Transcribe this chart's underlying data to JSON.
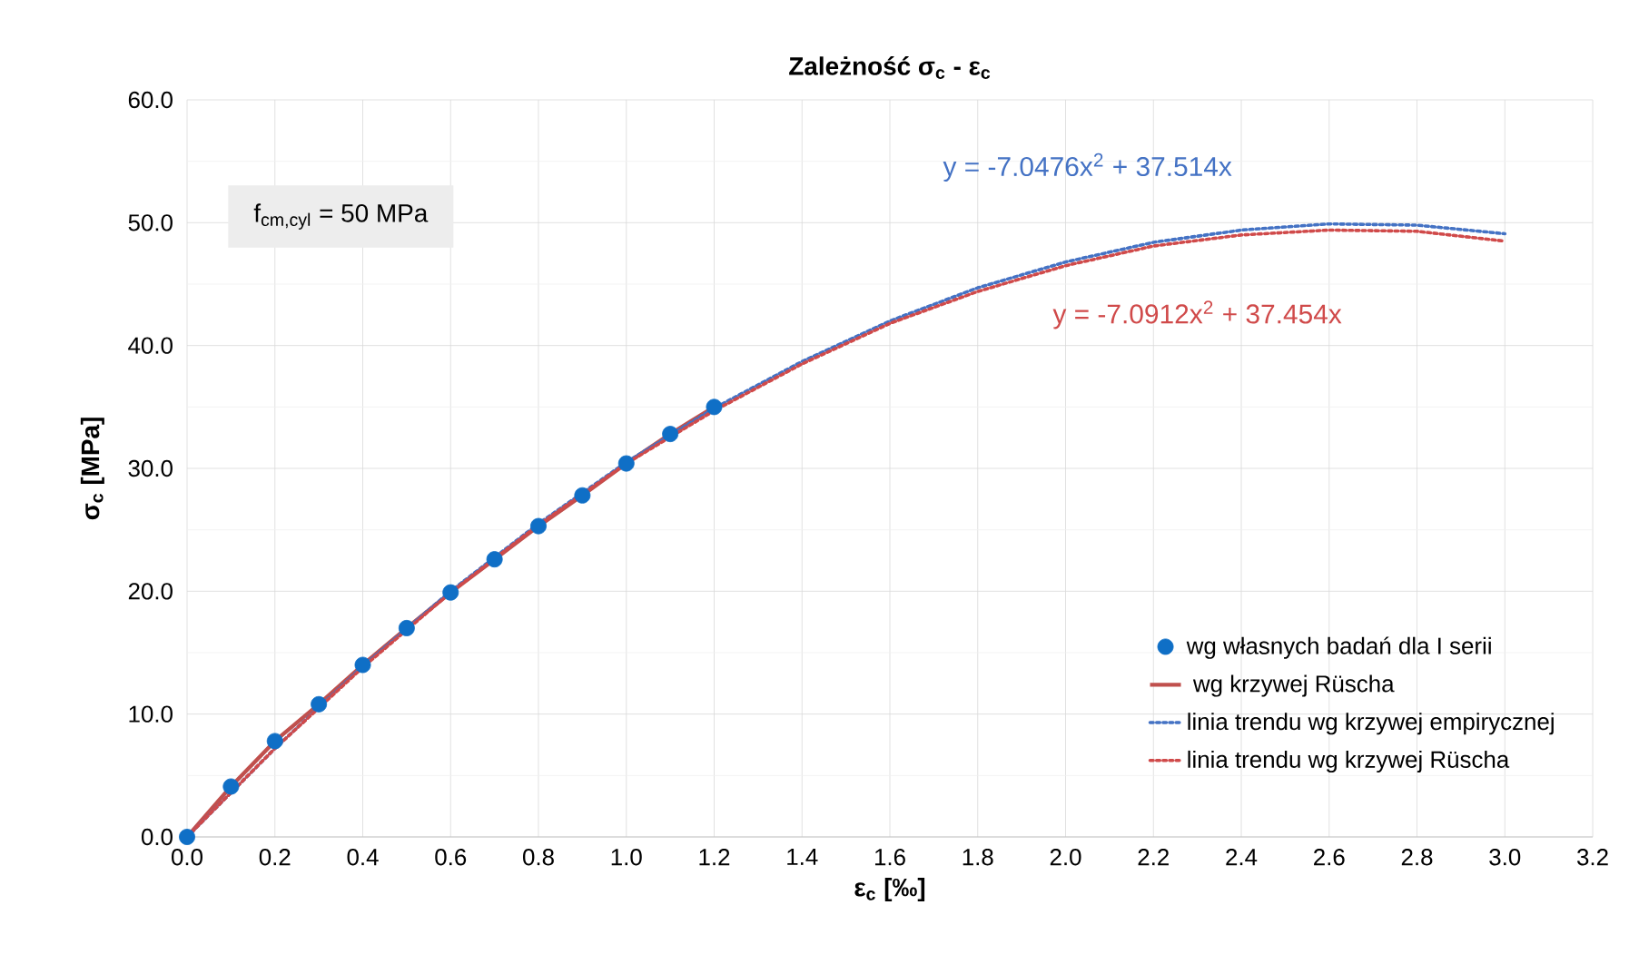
{
  "chart_data": {
    "type": "line",
    "title": "**Zależność σ$_{c}$ - ε$_{c}$**",
    "xlabel": "**ε$_{c}$ [‰]**",
    "ylabel": "**σ$_{c}$ [MPa]**",
    "x": [
      0.0,
      0.1,
      0.2,
      0.3,
      0.4,
      0.5,
      0.6,
      0.7,
      0.8,
      0.9,
      1.0,
      1.1,
      1.2
    ],
    "series": [
      {
        "name": "wg własnych badań dla I serii",
        "type": "scatter",
        "marker": "circle",
        "color": "#0f6fc6",
        "values": [
          0.0,
          4.1,
          7.8,
          10.8,
          14.0,
          17.0,
          19.9,
          22.6,
          25.3,
          27.8,
          30.4,
          32.8,
          35.0
        ]
      },
      {
        "name": " wg krzywej Rüscha",
        "line_style": "solid",
        "color": "#c0504d",
        "values": [
          0.0,
          4.1,
          7.8,
          10.8,
          14.0,
          17.0,
          19.9,
          22.6,
          25.3,
          27.8,
          30.4,
          32.8,
          35.0
        ]
      },
      {
        "name": "linia trendu wg krzywej empirycznej",
        "line_style": "dotted",
        "color": "#4472c4",
        "x": [
          0.0,
          0.2,
          0.4,
          0.6,
          0.8,
          1.0,
          1.2,
          1.4,
          1.6,
          1.8,
          2.0,
          2.2,
          2.4,
          2.6,
          2.8,
          3.0
        ],
        "values": [
          0.0,
          7.2,
          13.9,
          20.0,
          25.5,
          30.5,
          34.9,
          38.7,
          42.0,
          44.7,
          46.8,
          48.4,
          49.4,
          49.9,
          49.8,
          49.1
        ]
      },
      {
        "name": "linia trendu wg krzywej Rüscha",
        "line_style": "dotted",
        "color": "#d04a4a",
        "x": [
          0.0,
          0.2,
          0.4,
          0.6,
          0.8,
          1.0,
          1.2,
          1.4,
          1.6,
          1.8,
          2.0,
          2.2,
          2.4,
          2.6,
          2.8,
          3.0
        ],
        "values": [
          0.0,
          7.2,
          13.8,
          19.9,
          25.4,
          30.4,
          34.7,
          38.5,
          41.8,
          44.4,
          46.5,
          48.1,
          49.0,
          49.4,
          49.3,
          48.5
        ]
      }
    ],
    "annotations": [
      "f$_{cm,cyl}$ = 50 MPa",
      "y = -7.0476x$^{2}$ + 37.514x",
      "y = -7.0912x$^{2}$ + 37.454x"
    ],
    "xlim": [
      0,
      3.2
    ],
    "ylim": [
      0,
      60
    ],
    "xticks": [
      {
        "value": 0,
        "label": "0.0"
      },
      {
        "value": 0.2,
        "label": "0.2"
      },
      {
        "value": 0.4,
        "label": "0.4"
      },
      {
        "value": 0.6,
        "label": "0.6"
      },
      {
        "value": 0.8,
        "label": "0.8"
      },
      {
        "value": 1.0,
        "label": "1.0"
      },
      {
        "value": 1.2,
        "label": "1.2"
      },
      {
        "value": 1.4,
        "label": "1.4"
      },
      {
        "value": 1.6,
        "label": "1.6"
      },
      {
        "value": 1.8,
        "label": "1.8"
      },
      {
        "value": 2.0,
        "label": "2.0"
      },
      {
        "value": 2.2,
        "label": "2.2"
      },
      {
        "value": 2.4,
        "label": "2.4"
      },
      {
        "value": 2.6,
        "label": "2.6"
      },
      {
        "value": 2.8,
        "label": "2.8"
      },
      {
        "value": 3.0,
        "label": "3.0"
      },
      {
        "value": 3.2,
        "label": "3.2"
      }
    ],
    "yticks": [
      {
        "value": 0,
        "label": "0.0"
      },
      {
        "value": 10,
        "label": "10.0"
      },
      {
        "value": 20,
        "label": "20.0"
      },
      {
        "value": 30,
        "label": "30.0"
      },
      {
        "value": 40,
        "label": "40.0"
      },
      {
        "value": 50,
        "label": "50.0"
      },
      {
        "value": 60,
        "label": "60.0"
      }
    ],
    "grid": true,
    "legend": "bottom right"
  }
}
